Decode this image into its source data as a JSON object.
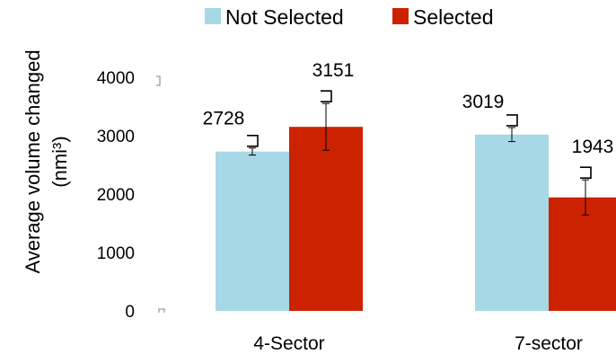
{
  "chart_data": {
    "type": "bar",
    "title": "",
    "xlabel": "",
    "ylabel": "Average volume changed",
    "ylabel_unit": "(nmi³)",
    "categories": [
      "4-Sector",
      "7-sector"
    ],
    "series": [
      {
        "name": "Not Selected",
        "color": "#a7d8e5",
        "values": [
          2728,
          3019
        ],
        "error": [
          60,
          120
        ]
      },
      {
        "name": "Selected",
        "color": "#cc2200",
        "values": [
          3151,
          1943
        ],
        "error": [
          400,
          300
        ]
      }
    ],
    "ylim": [
      0,
      4000
    ],
    "yticks": [
      0,
      1000,
      2000,
      3000,
      4000
    ],
    "ytick_labels": [
      "0",
      "1000",
      "2000",
      "3000",
      "4000"
    ],
    "data_labels": [
      "2728",
      "3151",
      "3019",
      "1943"
    ],
    "grid": false,
    "legend": "top"
  }
}
